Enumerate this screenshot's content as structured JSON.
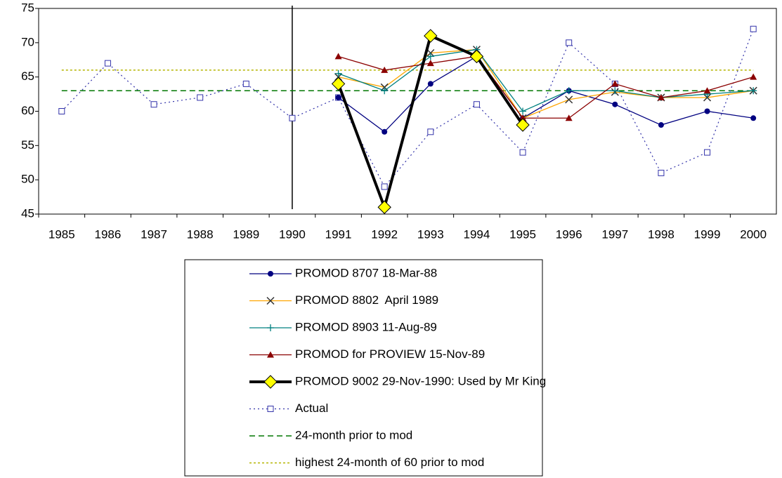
{
  "chart_data": {
    "type": "line",
    "categories": [
      "1985",
      "1986",
      "1987",
      "1988",
      "1989",
      "1990",
      "1991",
      "1992",
      "1993",
      "1994",
      "1995",
      "1996",
      "1997",
      "1998",
      "1999",
      "2000"
    ],
    "series": [
      {
        "name": "PROMOD 8707 18-Mar-88",
        "color": "#000080",
        "marker": "circle",
        "dash": "none",
        "width": 1.3,
        "values": [
          null,
          null,
          null,
          null,
          null,
          null,
          62,
          57,
          64,
          68,
          59,
          63,
          61,
          58,
          60,
          59
        ]
      },
      {
        "name": "PROMOD 8802  April 1989",
        "color": "#ffa500",
        "marker": "x",
        "dash": "none",
        "width": 1.3,
        "values": [
          null,
          null,
          null,
          null,
          null,
          null,
          65,
          63.5,
          68.5,
          69,
          59,
          61.7,
          62.8,
          62,
          62,
          63
        ]
      },
      {
        "name": "PROMOD 8903 11-Aug-89",
        "color": "#008080",
        "marker": "plus",
        "dash": "none",
        "width": 1.3,
        "values": [
          null,
          null,
          null,
          null,
          null,
          null,
          65.5,
          63,
          68,
          69,
          60,
          63,
          63,
          62,
          62.5,
          63
        ]
      },
      {
        "name": "PROMOD for PROVIEW 15-Nov-89",
        "color": "#8b0000",
        "marker": "triangle",
        "dash": "none",
        "width": 1.3,
        "values": [
          null,
          null,
          null,
          null,
          null,
          null,
          68,
          66,
          67,
          68,
          59,
          59,
          64,
          62,
          63,
          65
        ]
      },
      {
        "name": "PROMOD 9002 29-Nov-1990: Used by Mr King",
        "color": "#000000",
        "marker": "diamond",
        "dash": "none",
        "width": 4,
        "values": [
          null,
          null,
          null,
          null,
          null,
          null,
          64,
          46,
          71,
          68,
          58,
          null,
          null,
          null,
          null,
          null
        ]
      },
      {
        "name": "Actual",
        "color": "#3333aa",
        "marker": "square",
        "dash": "2,4",
        "width": 1.2,
        "values": [
          60,
          67,
          61,
          62,
          64,
          59,
          62,
          49,
          57,
          61,
          54,
          70,
          64,
          51,
          54,
          72
        ]
      },
      {
        "name": "24-month prior to mod",
        "color": "#007700",
        "marker": "none",
        "dash": "8,5",
        "width": 1.5,
        "values": [
          63,
          63,
          63,
          63,
          63,
          63,
          63,
          63,
          63,
          63,
          63,
          63,
          63,
          63,
          63,
          63
        ]
      },
      {
        "name": "highest 24-month of 60 prior to mod",
        "color": "#b5b500",
        "marker": "none",
        "dash": "3,3",
        "width": 1.5,
        "values": [
          66,
          66,
          66,
          66,
          66,
          66,
          66,
          66,
          66,
          66,
          66,
          66,
          66,
          66,
          66,
          66
        ]
      }
    ],
    "vline": "1990",
    "ylim": [
      45,
      75
    ],
    "yticks": [
      45,
      50,
      55,
      60,
      65,
      70,
      75
    ]
  }
}
